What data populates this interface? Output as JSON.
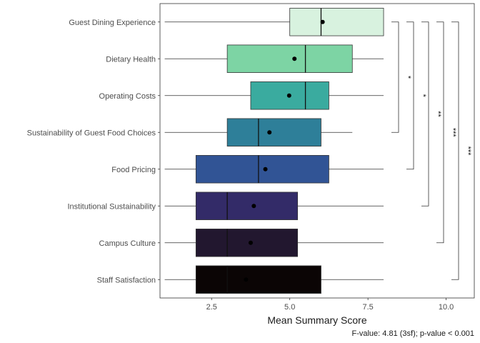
{
  "chart_data": {
    "type": "boxplot",
    "xlabel": "Mean Summary Score",
    "ylabel": "",
    "caption": "F-value: 4.81 (3sf); p-value < 0.001",
    "xlim": [
      0.85,
      10.9
    ],
    "xticks": [
      2.5,
      5.0,
      7.5,
      10.0
    ],
    "xtick_labels": [
      "2.5",
      "5.0",
      "7.5",
      "10.0"
    ],
    "grid": false,
    "legend": "none",
    "categories": [
      "Guest Dining Experience",
      "Dietary Health",
      "Operating Costs",
      "Sustainability of Guest Food Choices",
      "Food Pricing",
      "Institutional Sustainability",
      "Campus Culture",
      "Staff Satisfaction"
    ],
    "boxes": [
      {
        "whisker_low": 1.0,
        "q1": 5.0,
        "median": 6.0,
        "q3": 8.0,
        "whisker_high": 8.0,
        "mean": 6.05,
        "color": "#d8f2df"
      },
      {
        "whisker_low": 1.0,
        "q1": 3.0,
        "median": 5.5,
        "q3": 7.0,
        "whisker_high": 8.0,
        "mean": 5.15,
        "color": "#7dd4a4"
      },
      {
        "whisker_low": 1.0,
        "q1": 3.75,
        "median": 5.5,
        "q3": 6.25,
        "whisker_high": 8.0,
        "mean": 4.98,
        "color": "#3aab9f"
      },
      {
        "whisker_low": 1.0,
        "q1": 3.0,
        "median": 4.0,
        "q3": 6.0,
        "whisker_high": 7.0,
        "mean": 4.35,
        "color": "#2e7f99"
      },
      {
        "whisker_low": 1.0,
        "q1": 2.0,
        "median": 4.0,
        "q3": 6.25,
        "whisker_high": 8.0,
        "mean": 4.22,
        "color": "#315495"
      },
      {
        "whisker_low": 1.0,
        "q1": 2.0,
        "median": 3.0,
        "q3": 5.25,
        "whisker_high": 8.0,
        "mean": 3.85,
        "color": "#332b68"
      },
      {
        "whisker_low": 1.0,
        "q1": 2.0,
        "median": 3.0,
        "q3": 5.25,
        "whisker_high": 8.0,
        "mean": 3.75,
        "color": "#22172f"
      },
      {
        "whisker_low": 1.0,
        "q1": 2.0,
        "median": 3.0,
        "q3": 6.0,
        "whisker_high": 8.0,
        "mean": 3.6,
        "color": "#0b0505"
      }
    ],
    "significance": [
      {
        "from": "Guest Dining Experience",
        "to": "Sustainability of Guest Food Choices",
        "label": "*"
      },
      {
        "from": "Guest Dining Experience",
        "to": "Food Pricing",
        "label": "*"
      },
      {
        "from": "Guest Dining Experience",
        "to": "Institutional Sustainability",
        "label": "**"
      },
      {
        "from": "Guest Dining Experience",
        "to": "Campus Culture",
        "label": "***"
      },
      {
        "from": "Guest Dining Experience",
        "to": "Staff Satisfaction",
        "label": "***"
      }
    ]
  }
}
